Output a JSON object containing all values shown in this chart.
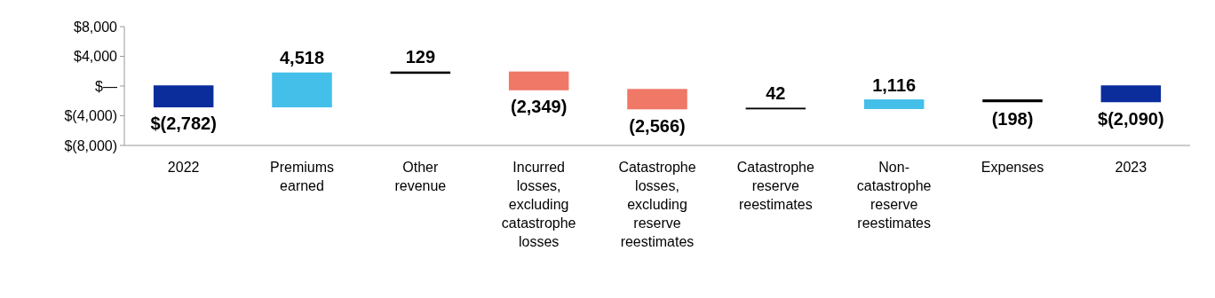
{
  "chart_data": {
    "type": "bar",
    "categories": [
      "2022",
      "Premiums earned",
      "Other revenue",
      "Incurred losses, excluding catastrophe losses",
      "Catastrophe losses, excluding reserve reestimates",
      "Catastrophe reserve reestimates",
      "Non-catastrophe reserve reestimates",
      "Expenses",
      "2023"
    ],
    "values": [
      -2782,
      4518,
      129,
      -2349,
      -2566,
      42,
      1116,
      -198,
      -2090
    ],
    "base": [
      0,
      -2782,
      1736,
      1865,
      -484,
      -3050,
      -3008,
      -1892,
      0
    ],
    "colors": [
      "#0b2d9c",
      "#44bfe9",
      "#000000",
      "#ef7866",
      "#ef7866",
      "#000000",
      "#44bfe9",
      "#000000",
      "#0b2d9c"
    ],
    "value_labels": [
      "$(2,782)",
      "4,518",
      "129",
      "(2,349)",
      "(2,566)",
      "42",
      "1,116",
      "(198)",
      "$(2,090)"
    ],
    "ylim": [
      -8000,
      8000
    ],
    "yticks": [
      {
        "value": 8000,
        "label": "$8,000"
      },
      {
        "value": 4000,
        "label": "$4,000"
      },
      {
        "value": 0,
        "label": "$—"
      },
      {
        "value": -4000,
        "label": "$(4,000)"
      },
      {
        "value": -8000,
        "label": "$(8,000)"
      }
    ],
    "grid": false
  }
}
